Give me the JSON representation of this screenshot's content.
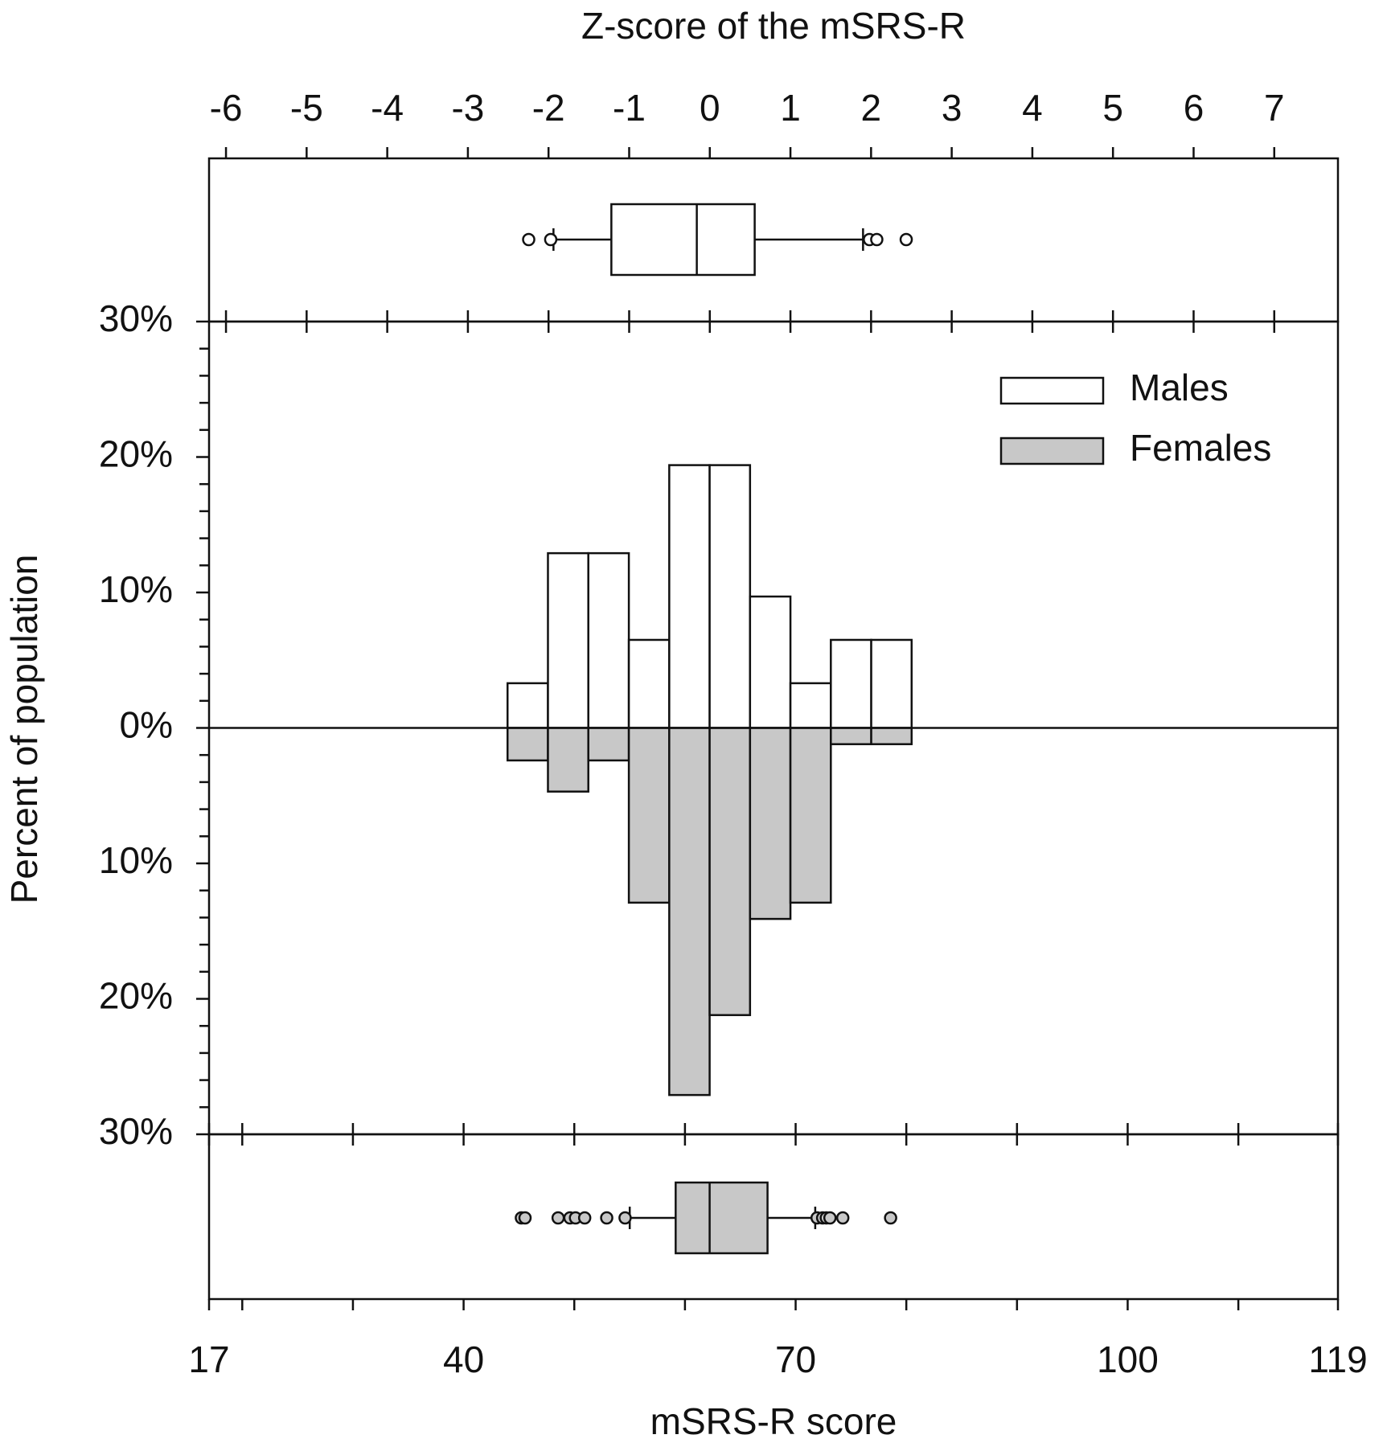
{
  "chart_data": {
    "type": "histogram",
    "x2_label": "Z-score of the mSRS-R",
    "x_label": "mSRS-R score",
    "y_label": "Percent of population",
    "xlim": [
      17,
      119
    ],
    "xticks": [
      17,
      40,
      70,
      100,
      119
    ],
    "x_minor_ticks": [
      20,
      30,
      50,
      60,
      80,
      90,
      110
    ],
    "x2lim": [
      -6.21,
      7.79
    ],
    "x2ticks": [
      -6,
      -5,
      -4,
      -3,
      -2,
      -1,
      0,
      1,
      2,
      3,
      4,
      5,
      6,
      7
    ],
    "ylim": [
      0,
      30
    ],
    "yticks": [
      {
        "value": 0,
        "label": "0%"
      },
      {
        "value": 10,
        "label": "10%"
      },
      {
        "value": 20,
        "label": "20%"
      },
      {
        "value": 30,
        "label": "30%"
      }
    ],
    "yticks_lower": [
      {
        "value": 10,
        "label": "10%"
      },
      {
        "value": 20,
        "label": "20%"
      },
      {
        "value": 30,
        "label": "30%"
      }
    ],
    "y_minor_ticks": [
      2,
      4,
      6,
      8,
      12,
      14,
      16,
      18,
      22,
      24,
      26,
      28
    ],
    "legend": "upper right",
    "bins": [
      43.97,
      47.62,
      51.27,
      54.93,
      58.58,
      62.23,
      65.88,
      69.53,
      73.18,
      76.83,
      80.48
    ],
    "series": [
      {
        "name": "Males",
        "color": "#ffffff",
        "direction": "up",
        "values": [
          3.3,
          12.9,
          12.9,
          6.5,
          19.4,
          19.4,
          9.7,
          3.3,
          6.5,
          6.5
        ],
        "boxplot": {
          "whislo": 48.12,
          "q1": 53.35,
          "med": 61.07,
          "q3": 66.3,
          "whishi": 76.09,
          "fliers": [
            45.88,
            47.87,
            76.67,
            77.33,
            79.99
          ]
        }
      },
      {
        "name": "Females",
        "color": "#c8c8c8",
        "direction": "down",
        "values": [
          2.4,
          4.7,
          2.4,
          12.9,
          27.1,
          21.2,
          14.1,
          12.9,
          1.2,
          1.2
        ],
        "boxplot": {
          "whislo": 55.01,
          "q1": 59.16,
          "med": 62.23,
          "q3": 67.46,
          "whishi": 71.77,
          "fliers": [
            45.22,
            45.55,
            48.54,
            49.61,
            50.11,
            50.94,
            52.93,
            54.59,
            71.94,
            72.44,
            72.77,
            73.1,
            74.26,
            78.58
          ]
        }
      }
    ]
  }
}
